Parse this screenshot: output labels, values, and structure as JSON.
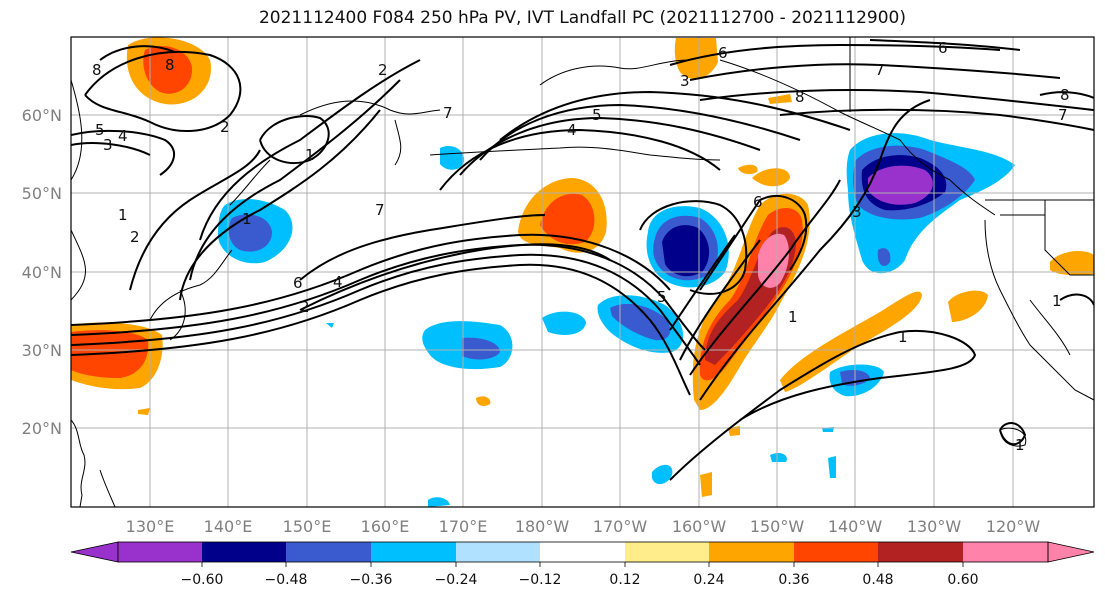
{
  "title": "2021112400 F084 250 hPa PV, IVT Landfall PC (2021112700 - 2021112900)",
  "lat_labels": [
    "60°N",
    "50°N",
    "40°N",
    "30°N",
    "20°N"
  ],
  "lon_labels": [
    "130°E",
    "140°E",
    "150°E",
    "160°E",
    "170°E",
    "180°W",
    "170°W",
    "160°W",
    "150°W",
    "140°W",
    "130°W",
    "120°W"
  ],
  "colorbar": {
    "colors": [
      "#9932cc",
      "#00008b",
      "#3a5bcf",
      "#00bfff",
      "#b0e2ff",
      "#ffffff",
      "#ffec8b",
      "#ffa500",
      "#ff4500",
      "#b22222",
      "#ff82ab"
    ],
    "tick_labels": [
      "−0.60",
      "−0.48",
      "−0.36",
      "−0.24",
      "−0.12",
      "0.12",
      "0.24",
      "0.36",
      "0.48",
      "0.60"
    ]
  },
  "pv_contour_labels": [
    "8",
    "6",
    "5",
    "4",
    "3",
    "2",
    "1",
    "2",
    "1",
    "7",
    "5",
    "4",
    "6",
    "2",
    "4",
    "6",
    "7",
    "8",
    "6",
    "1",
    "1",
    "7",
    "6",
    "8",
    "2",
    "3",
    "5",
    "1",
    "1",
    "1"
  ],
  "colors": {
    "contour": "#000000",
    "grid": "#b0b0b0",
    "coast": "#000000"
  }
}
